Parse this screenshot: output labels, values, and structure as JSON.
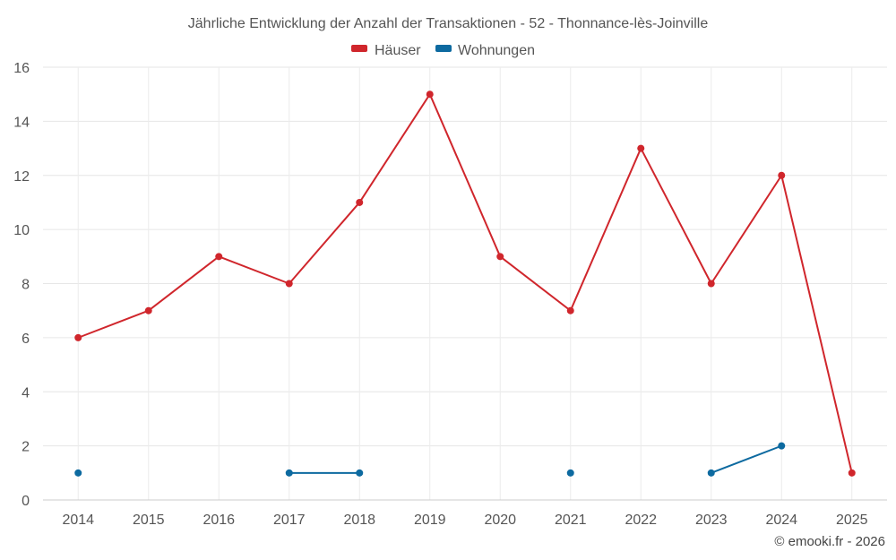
{
  "chart_data": {
    "type": "line",
    "title": "Jährliche Entwicklung der Anzahl der Transaktionen - 52 - Thonnance-lès-Joinville",
    "categories": [
      "2014",
      "2015",
      "2016",
      "2017",
      "2018",
      "2019",
      "2020",
      "2021",
      "2022",
      "2023",
      "2024",
      "2025"
    ],
    "yticks": [
      "0",
      "2",
      "4",
      "6",
      "8",
      "10",
      "12",
      "14",
      "16"
    ],
    "ylim": [
      0,
      16
    ],
    "grid": true,
    "legend_position": "top-center",
    "series": [
      {
        "name": "Häuser",
        "color": "#d0262c",
        "values": [
          6,
          7,
          9,
          8,
          11,
          15,
          9,
          7,
          13,
          8,
          12,
          1
        ]
      },
      {
        "name": "Wohnungen",
        "color": "#0d6aa0",
        "values": [
          1,
          null,
          null,
          1,
          1,
          null,
          null,
          1,
          null,
          1,
          2,
          null
        ]
      }
    ],
    "xlabel": "",
    "ylabel": ""
  },
  "credit": "© emooki.fr - 2026"
}
